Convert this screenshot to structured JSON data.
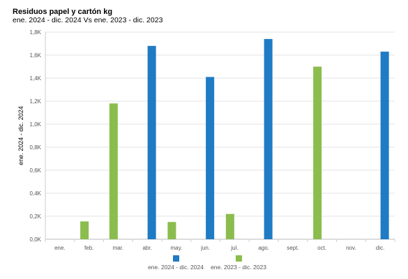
{
  "chart_data": {
    "type": "bar",
    "title": "Residuos papel y cartón kg",
    "subtitle": "ene. 2024 - dic. 2024 Vs ene. 2023 - dic. 2023",
    "xlabel": "",
    "ylabel": "ene. 2024 - dic. 2024",
    "categories": [
      "ene.",
      "feb.",
      "mar.",
      "abr.",
      "may.",
      "jun.",
      "jul.",
      "ago.",
      "sept.",
      "oct.",
      "nov.",
      "dic."
    ],
    "series": [
      {
        "name": "ene. 2024 - dic. 2024",
        "color": "#1f7bc4",
        "values": [
          null,
          null,
          null,
          1680,
          null,
          1410,
          null,
          1740,
          null,
          null,
          null,
          1630
        ]
      },
      {
        "name": "ene. 2023 - dic. 2023",
        "color": "#8bbd4e",
        "values": [
          null,
          155,
          1180,
          null,
          150,
          null,
          220,
          null,
          null,
          1500,
          null,
          null
        ]
      }
    ],
    "ylim": [
      0,
      1800
    ],
    "yticks": [
      {
        "value": 0,
        "label": "0,0K"
      },
      {
        "value": 200,
        "label": "0,2K"
      },
      {
        "value": 400,
        "label": "0,4K"
      },
      {
        "value": 600,
        "label": "0,6K"
      },
      {
        "value": 800,
        "label": "0,8K"
      },
      {
        "value": 1000,
        "label": "1,0K"
      },
      {
        "value": 1200,
        "label": "1,2K"
      },
      {
        "value": 1400,
        "label": "1,4K"
      },
      {
        "value": 1600,
        "label": "1,6K"
      },
      {
        "value": 1800,
        "label": "1,8K"
      }
    ],
    "grid": true,
    "legend_position": "bottom"
  }
}
